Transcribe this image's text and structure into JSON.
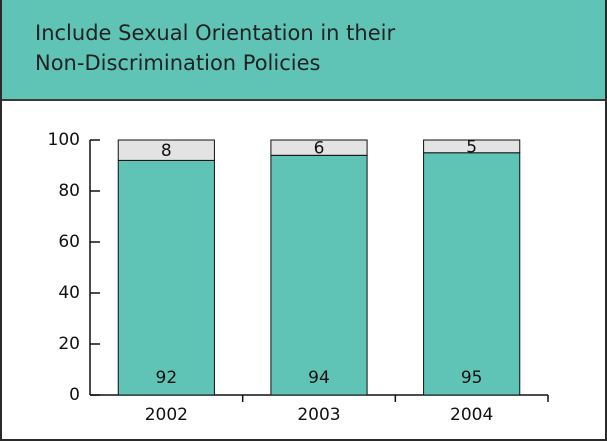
{
  "chart_data": {
    "type": "stacked_bar",
    "title": "Include Sexual Orientation in their\nNon-Discrimination Policies",
    "categories": [
      "2002",
      "2003",
      "2004"
    ],
    "series": [
      {
        "color": "#5fc4b6",
        "values": [
          92,
          94,
          95
        ]
      },
      {
        "color": "#e3e3e3",
        "values": [
          8,
          6,
          5
        ]
      }
    ],
    "ylim": [
      0,
      100
    ],
    "yticks": [
      0,
      20,
      40,
      60,
      80,
      100
    ]
  }
}
